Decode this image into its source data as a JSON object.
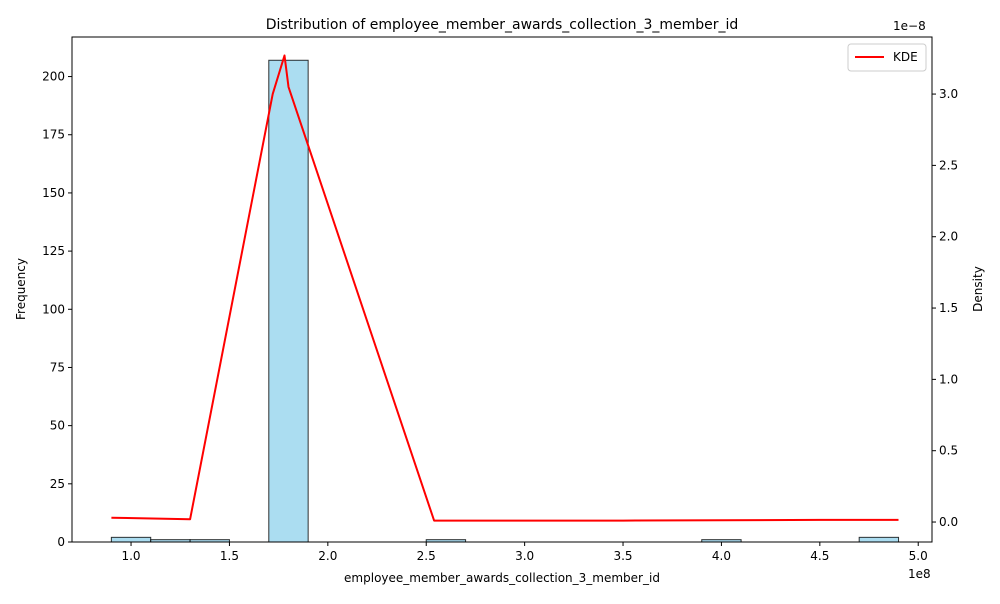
{
  "chart_data": {
    "type": "bar",
    "title": "Distribution of employee_member_awards_collection_3_member_id",
    "xlabel": "employee_member_awards_collection_3_member_id",
    "ylabel": "Frequency",
    "y2label": "Density",
    "x_offset_text": "1e8",
    "y2_offset_text": "1e−8",
    "xlim": [
      0.7,
      5.07
    ],
    "ylim": [
      0,
      217
    ],
    "y2lim": [
      -0.14,
      3.4
    ],
    "x_ticks": [
      1.0,
      1.5,
      2.0,
      2.5,
      3.0,
      3.5,
      4.0,
      4.5,
      5.0
    ],
    "x_tick_labels": [
      "1.0",
      "1.5",
      "2.0",
      "2.5",
      "3.0",
      "3.5",
      "4.0",
      "4.5",
      "5.0"
    ],
    "y_ticks": [
      0,
      25,
      50,
      75,
      100,
      125,
      150,
      175,
      200
    ],
    "y_tick_labels": [
      "0",
      "25",
      "50",
      "75",
      "100",
      "125",
      "150",
      "175",
      "200"
    ],
    "y2_ticks": [
      0.0,
      0.5,
      1.0,
      1.5,
      2.0,
      2.5,
      3.0
    ],
    "y2_tick_labels": [
      "0.0",
      "0.5",
      "1.0",
      "1.5",
      "2.0",
      "2.5",
      "3.0"
    ],
    "grid": false,
    "legend": {
      "position": "top-right",
      "entries": [
        "KDE"
      ]
    },
    "colors": {
      "bar_fill": "#87CEEB",
      "bar_edge": "#000000",
      "kde": "#FF0000"
    },
    "histogram": {
      "bin_edges": [
        0.9,
        1.1,
        1.3,
        1.5,
        1.7,
        1.9,
        2.1,
        2.3,
        2.5,
        2.7,
        2.9,
        3.1,
        3.3,
        3.5,
        3.7,
        3.9,
        4.1,
        4.3,
        4.5,
        4.7,
        4.9
      ],
      "counts": [
        2,
        1,
        1,
        0,
        207,
        0,
        0,
        0,
        1,
        0,
        0,
        0,
        0,
        0,
        0,
        1,
        0,
        0,
        0,
        2
      ]
    },
    "series": [
      {
        "name": "KDE",
        "x": [
          0.9,
          1.3,
          1.72,
          1.78,
          1.8,
          2.54,
          3.5,
          4.5,
          4.9
        ],
        "y": [
          0.03,
          0.02,
          3.0,
          3.27,
          3.05,
          0.01,
          0.01,
          0.015,
          0.015
        ]
      }
    ]
  }
}
